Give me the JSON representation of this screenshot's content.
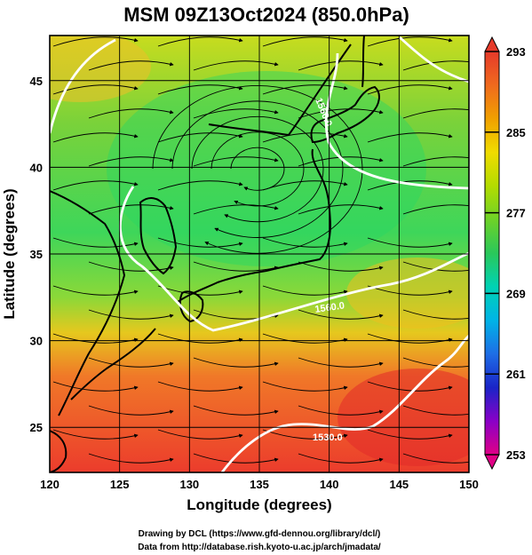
{
  "title": "MSM 09Z13Oct2024 (850.0hPa)",
  "x_axis": {
    "label": "Longitude (degrees)",
    "ticks": [
      120,
      125,
      130,
      135,
      140,
      145,
      150
    ],
    "range": [
      120,
      150
    ]
  },
  "y_axis": {
    "label": "Latitude  (degrees)",
    "ticks": [
      25,
      30,
      35,
      40,
      45
    ],
    "range": [
      22.4,
      47.6
    ]
  },
  "colorbar": {
    "ticks": [
      293,
      285,
      277,
      269,
      261,
      253
    ],
    "range": [
      253,
      293
    ],
    "colors": [
      "#e00086",
      "#8a00c8",
      "#1a24c8",
      "#1e6ee6",
      "#00b4e6",
      "#00d2b4",
      "#2ac85a",
      "#6ed228",
      "#b4dc00",
      "#f0dc00",
      "#f0a000",
      "#f06a1e",
      "#e63a2a"
    ]
  },
  "contours": {
    "labels": [
      "1560.0",
      "1560.0",
      "1530.0"
    ],
    "color": "#ffffff"
  },
  "credits": {
    "line1": "Drawing by DCL (https://www.gfd-dennou.org/library/dcl/)",
    "line2": "Data from http://database.rish.kyoto-u.ac.jp/arch/jmadata/"
  }
}
